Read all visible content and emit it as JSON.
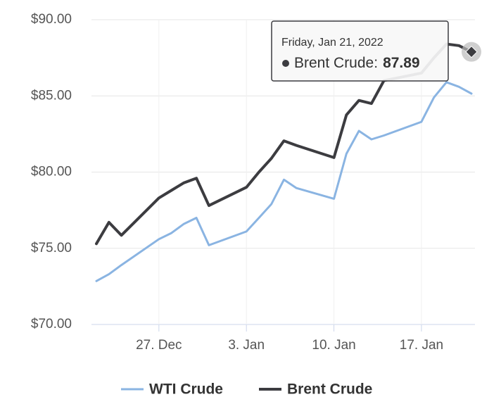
{
  "chart_data": {
    "type": "line",
    "x": [
      "22. Dec",
      "23. Dec",
      "24. Dec",
      "27. Dec",
      "28. Dec",
      "29. Dec",
      "30. Dec",
      "31. Dec",
      "3. Jan",
      "4. Jan",
      "5. Jan",
      "6. Jan",
      "7. Jan",
      "10. Jan",
      "11. Jan",
      "12. Jan",
      "13. Jan",
      "14. Jan",
      "17. Jan",
      "18. Jan",
      "19. Jan",
      "20. Jan",
      "21. Jan"
    ],
    "series": [
      {
        "name": "WTI Crude",
        "color": "#8ab4e2",
        "values": [
          72.85,
          73.3,
          73.9,
          75.6,
          76.0,
          76.6,
          77.0,
          75.2,
          76.1,
          77.0,
          77.9,
          79.5,
          78.95,
          78.25,
          81.2,
          82.7,
          82.15,
          82.4,
          83.3,
          84.9,
          85.9,
          85.6,
          85.15
        ]
      },
      {
        "name": "Brent Crude",
        "color": "#3c3c40",
        "values": [
          75.3,
          76.7,
          75.85,
          78.3,
          78.8,
          79.3,
          79.6,
          77.8,
          79.0,
          80.0,
          80.9,
          82.05,
          81.75,
          80.95,
          83.75,
          84.7,
          84.5,
          86.0,
          86.5,
          87.5,
          88.4,
          88.3,
          87.89
        ]
      }
    ],
    "ylim": [
      70,
      90
    ],
    "yticks": [
      {
        "value": 70,
        "label": "$70.00"
      },
      {
        "value": 75,
        "label": "$75.00"
      },
      {
        "value": 80,
        "label": "$80.00"
      },
      {
        "value": 85,
        "label": "$85.00"
      },
      {
        "value": 90,
        "label": "$90.00"
      }
    ],
    "xticks": [
      "27. Dec",
      "3. Jan",
      "10. Jan",
      "17. Jan"
    ],
    "grid": true,
    "legend": "bottom",
    "tooltip": {
      "header": "Friday, Jan 21, 2022",
      "series_label": "Brent Crude:",
      "series": 1,
      "index": 22
    }
  }
}
